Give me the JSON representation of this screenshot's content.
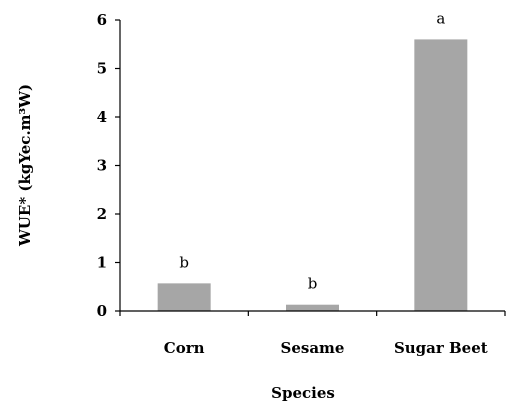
{
  "chart_data": {
    "type": "bar",
    "categories": [
      "Corn",
      "Sesame",
      "Sugar Beet"
    ],
    "values": [
      0.57,
      0.13,
      5.6
    ],
    "annotations": [
      "b",
      "b",
      "a"
    ],
    "xlabel": "Species",
    "ylabel": "WUE* (kgYec.m³W)",
    "ylim": [
      0,
      6
    ],
    "yticks": [
      "0",
      "1",
      "2",
      "3",
      "4",
      "5",
      "6"
    ],
    "grid": false,
    "bar_color": "#a6a6a6"
  }
}
